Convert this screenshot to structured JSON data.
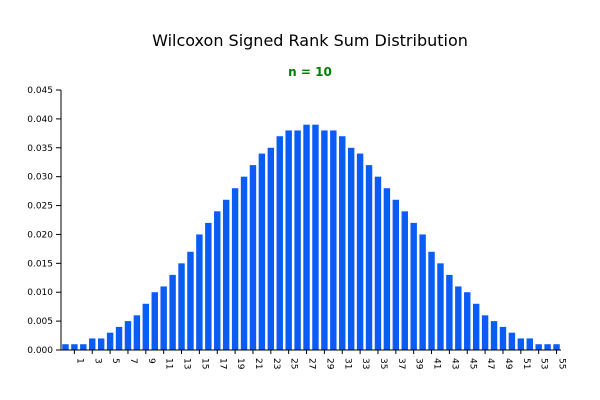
{
  "chart_data": {
    "type": "bar",
    "title": "Wilcoxon Signed Rank Sum Distribution",
    "subtitle": "n = 10",
    "subtitle_color": "#008000",
    "bar_color": "#0a5cf5",
    "xlabel": "",
    "ylabel": "",
    "ylim": [
      0,
      0.045
    ],
    "yticks": [
      "0.000",
      "0.005",
      "0.010",
      "0.015",
      "0.020",
      "0.025",
      "0.030",
      "0.035",
      "0.040",
      "0.045"
    ],
    "grid": false,
    "legend": "none",
    "categories": [
      0,
      1,
      2,
      3,
      4,
      5,
      6,
      7,
      8,
      9,
      10,
      11,
      12,
      13,
      14,
      15,
      16,
      17,
      18,
      19,
      20,
      21,
      22,
      23,
      24,
      25,
      26,
      27,
      28,
      29,
      30,
      31,
      32,
      33,
      34,
      35,
      36,
      37,
      38,
      39,
      40,
      41,
      42,
      43,
      44,
      45,
      46,
      47,
      48,
      49,
      50,
      51,
      52,
      53,
      54,
      55
    ],
    "xtick_labels": [
      "1",
      "3",
      "5",
      "7",
      "9",
      "11",
      "13",
      "15",
      "17",
      "19",
      "21",
      "23",
      "25",
      "27",
      "29",
      "31",
      "33",
      "35",
      "37",
      "39",
      "41",
      "43",
      "45",
      "47",
      "49",
      "51",
      "53",
      "55"
    ],
    "values": [
      0.001,
      0.001,
      0.001,
      0.002,
      0.002,
      0.003,
      0.004,
      0.005,
      0.006,
      0.008,
      0.01,
      0.011,
      0.013,
      0.015,
      0.017,
      0.02,
      0.022,
      0.024,
      0.026,
      0.028,
      0.03,
      0.032,
      0.034,
      0.035,
      0.037,
      0.038,
      0.038,
      0.039,
      0.039,
      0.038,
      0.038,
      0.037,
      0.035,
      0.034,
      0.032,
      0.03,
      0.028,
      0.026,
      0.024,
      0.022,
      0.02,
      0.017,
      0.015,
      0.013,
      0.011,
      0.01,
      0.008,
      0.006,
      0.005,
      0.004,
      0.003,
      0.002,
      0.002,
      0.001,
      0.001,
      0.001
    ]
  }
}
